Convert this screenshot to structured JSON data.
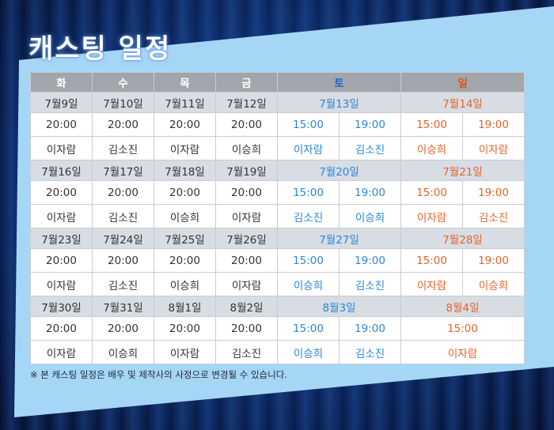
{
  "title": "캐스팅 일정",
  "days": [
    "화",
    "수",
    "목",
    "금",
    "토",
    "일"
  ],
  "weeks": [
    {
      "dates": [
        "7월9일",
        "7월10일",
        "7월11일",
        "7월12일",
        "7월13일",
        "7월14일"
      ],
      "times": [
        "20:00",
        "20:00",
        "20:00",
        "20:00",
        "15:00",
        "19:00",
        "15:00",
        "19:00"
      ],
      "casts": [
        "이자람",
        "김소진",
        "이자람",
        "이승희",
        "이자람",
        "김소진",
        "이승희",
        "이자람"
      ]
    },
    {
      "dates": [
        "7월16일",
        "7월17일",
        "7월18일",
        "7월19일",
        "7월20일",
        "7월21일"
      ],
      "times": [
        "20:00",
        "20:00",
        "20:00",
        "20:00",
        "15:00",
        "19:00",
        "15:00",
        "19:00"
      ],
      "casts": [
        "이자람",
        "김소진",
        "이승희",
        "이자람",
        "김소진",
        "이승희",
        "이자람",
        "김소진"
      ]
    },
    {
      "dates": [
        "7월23일",
        "7월24일",
        "7월25일",
        "7월26일",
        "7월27일",
        "7월28일"
      ],
      "times": [
        "20:00",
        "20:00",
        "20:00",
        "20:00",
        "15:00",
        "19:00",
        "15:00",
        "19:00"
      ],
      "casts": [
        "이자람",
        "김소진",
        "이승희",
        "이자람",
        "이승희",
        "김소진",
        "이자람",
        "이승희"
      ]
    },
    {
      "dates": [
        "7월30일",
        "7월31일",
        "8월1일",
        "8월2일",
        "8월3일",
        "8월4일"
      ],
      "times": [
        "20:00",
        "20:00",
        "20:00",
        "20:00",
        "15:00",
        "19:00",
        "15:00"
      ],
      "casts": [
        "이자람",
        "이승희",
        "이자람",
        "김소진",
        "이승희",
        "김소진",
        "이자람"
      ]
    }
  ],
  "note": "※ 본 캐스팅 일정은 배우 및 제작사의 사정으로 변경될 수 있습니다.",
  "colors": {
    "saturday": "#2b86d8",
    "sunday": "#e8622a",
    "header": "#a2a6ab",
    "panel": "#a6d6f5"
  }
}
